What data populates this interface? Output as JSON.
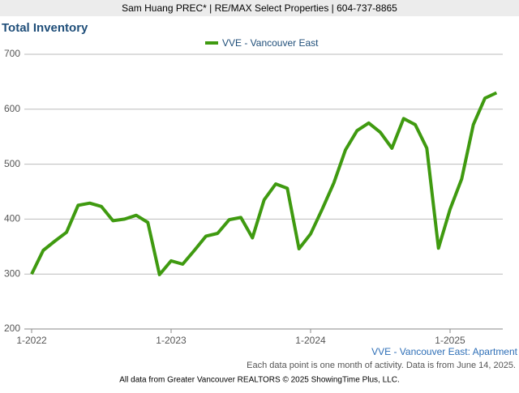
{
  "header": "Sam Huang PREC* | RE/MAX Select Properties | 604-737-8865",
  "chart_data": {
    "type": "line",
    "title": "Total Inventory",
    "categories": [
      "1-2022",
      null,
      null,
      null,
      null,
      null,
      null,
      null,
      null,
      null,
      null,
      null,
      "1-2023",
      null,
      null,
      null,
      null,
      null,
      null,
      null,
      null,
      null,
      null,
      null,
      "1-2024",
      null,
      null,
      null,
      null,
      null,
      null,
      null,
      null,
      null,
      null,
      null,
      "1-2025",
      null,
      null,
      null,
      null
    ],
    "series": [
      {
        "name": "VVE - Vancouver East",
        "color": "#3f9a10",
        "values": [
          300,
          343,
          360,
          376,
          425,
          429,
          423,
          397,
          400,
          407,
          394,
          299,
          324,
          318,
          343,
          369,
          374,
          399,
          403,
          366,
          435,
          464,
          456,
          346,
          373,
          418,
          466,
          526,
          561,
          575,
          558,
          529,
          583,
          572,
          529,
          347,
          418,
          473,
          572,
          620,
          630
        ]
      }
    ],
    "ylim": [
      200,
      700
    ],
    "yticks": [
      200,
      300,
      400,
      500,
      600,
      700
    ],
    "grid": true,
    "legend": "top",
    "subtitle": "VVE - Vancouver East: Apartment",
    "note": "Each data point is one month of activity. Data is from June 14, 2025.",
    "source": "All data from Greater Vancouver REALTORS © 2025 ShowingTime Plus, LLC."
  }
}
